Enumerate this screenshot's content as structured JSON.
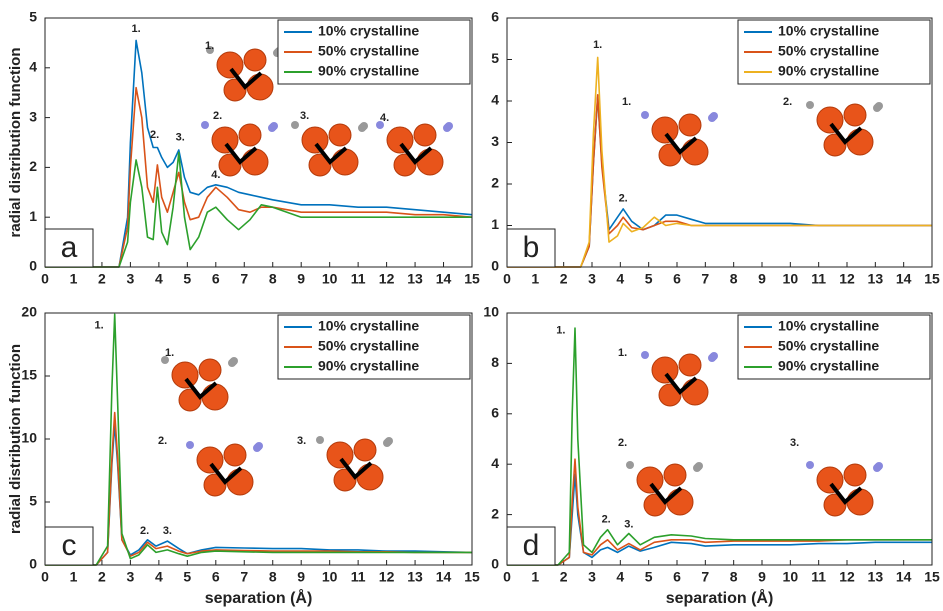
{
  "chart_data": [
    {
      "type": "line",
      "panel_label": "a",
      "y_label": "radial distribution function",
      "x": [
        0,
        2,
        2.6,
        2.9,
        3.0,
        3.2,
        3.4,
        3.6,
        3.8,
        3.95,
        4.1,
        4.3,
        4.5,
        4.7,
        4.9,
        5.1,
        5.4,
        5.7,
        6.0,
        6.4,
        6.8,
        7.2,
        7.6,
        8,
        9,
        10,
        11,
        12,
        13,
        14,
        15
      ],
      "series": [
        {
          "name": "10% crystalline",
          "color": "#0072bd",
          "values": [
            0,
            0,
            0,
            1,
            2.5,
            4.55,
            3.9,
            2.8,
            2.4,
            2.4,
            2.2,
            2.0,
            2.1,
            2.35,
            1.8,
            1.5,
            1.45,
            1.6,
            1.65,
            1.6,
            1.5,
            1.45,
            1.4,
            1.35,
            1.25,
            1.25,
            1.2,
            1.2,
            1.15,
            1.1,
            1.05
          ]
        },
        {
          "name": "50% crystalline",
          "color": "#d95319",
          "values": [
            0,
            0,
            0,
            0.8,
            2.0,
            3.6,
            3.0,
            1.6,
            1.3,
            2.05,
            1.4,
            1.1,
            1.5,
            1.9,
            1.3,
            0.95,
            1.0,
            1.4,
            1.6,
            1.4,
            1.15,
            1.1,
            1.2,
            1.2,
            1.1,
            1.1,
            1.1,
            1.1,
            1.05,
            1.05,
            1.0
          ]
        },
        {
          "name": "90% crystalline",
          "color": "#2ca02c",
          "values": [
            0,
            0,
            0,
            0.5,
            1.3,
            2.15,
            1.6,
            0.6,
            0.55,
            1.6,
            0.7,
            0.45,
            1.2,
            2.3,
            1.0,
            0.35,
            0.6,
            1.1,
            1.2,
            0.95,
            0.75,
            0.95,
            1.25,
            1.2,
            1.0,
            1.0,
            1.0,
            1.0,
            1.0,
            1.0,
            1.0
          ]
        }
      ],
      "xlim": [
        0,
        15
      ],
      "xticks": [
        0,
        1,
        2,
        3,
        4,
        5,
        6,
        7,
        8,
        9,
        10,
        11,
        12,
        13,
        14,
        15
      ],
      "ylim": [
        0,
        5
      ],
      "yticks": [
        0,
        1,
        2,
        3,
        4,
        5
      ],
      "legend": "upper right",
      "peak_labels": [
        "1.",
        "2.",
        "3.",
        "4."
      ],
      "inset_labels": [
        "1.",
        "2.",
        "3.",
        "4."
      ]
    },
    {
      "type": "line",
      "panel_label": "b",
      "x": [
        0,
        2,
        2.6,
        2.9,
        3.05,
        3.2,
        3.35,
        3.6,
        3.9,
        4.1,
        4.4,
        4.8,
        5.2,
        5.6,
        6,
        6.5,
        7,
        8,
        9,
        10,
        11,
        12,
        13,
        14,
        15
      ],
      "series": [
        {
          "name": "10% crystalline",
          "color": "#0072bd",
          "values": [
            0,
            0,
            0,
            0.5,
            2.5,
            4.1,
            2.5,
            0.9,
            1.2,
            1.4,
            1.1,
            0.9,
            1.0,
            1.25,
            1.25,
            1.15,
            1.05,
            1.05,
            1.05,
            1.05,
            1.0,
            1.0,
            1.0,
            1.0,
            1.0
          ]
        },
        {
          "name": "50% crystalline",
          "color": "#d95319",
          "values": [
            0,
            0,
            0,
            0.5,
            2.5,
            4.15,
            2.4,
            0.8,
            1.0,
            1.2,
            0.95,
            0.9,
            1.0,
            1.1,
            1.1,
            1.0,
            1.0,
            1.0,
            1.0,
            1.0,
            1.0,
            1.0,
            1.0,
            1.0,
            1.0
          ]
        },
        {
          "name": "90% crystalline",
          "color": "#edb120",
          "values": [
            0,
            0,
            0,
            0.6,
            3.2,
            5.05,
            2.8,
            0.6,
            0.75,
            1.05,
            0.85,
            0.95,
            1.2,
            1.0,
            1.05,
            1.0,
            1.0,
            1.0,
            1.0,
            1.0,
            1.0,
            1.0,
            1.0,
            1.0,
            1.0
          ]
        }
      ],
      "xlim": [
        0,
        15
      ],
      "xticks": [
        0,
        1,
        2,
        3,
        4,
        5,
        6,
        7,
        8,
        9,
        10,
        11,
        12,
        13,
        14,
        15
      ],
      "ylim": [
        0,
        6
      ],
      "yticks": [
        0,
        1,
        2,
        3,
        4,
        5,
        6
      ],
      "legend": "upper right",
      "peak_labels": [
        "1.",
        "2."
      ],
      "inset_labels": [
        "1.",
        "2."
      ]
    },
    {
      "type": "line",
      "panel_label": "c",
      "y_label": "radial distribution function",
      "x_label": "separation (Å)",
      "x": [
        0,
        1.8,
        2.2,
        2.35,
        2.45,
        2.55,
        2.7,
        3.0,
        3.3,
        3.6,
        3.9,
        4.3,
        4.7,
        5.0,
        5.5,
        6,
        7,
        8,
        9,
        10,
        11,
        12,
        13,
        14,
        15
      ],
      "series": [
        {
          "name": "10% crystalline",
          "color": "#0072bd",
          "values": [
            0,
            0,
            1,
            8,
            11.2,
            8,
            2,
            0.8,
            1.2,
            2.0,
            1.5,
            1.9,
            1.3,
            0.9,
            1.2,
            1.4,
            1.35,
            1.3,
            1.3,
            1.2,
            1.2,
            1.1,
            1.1,
            1.05,
            1.0
          ]
        },
        {
          "name": "50% crystalline",
          "color": "#d95319",
          "values": [
            0,
            0,
            1,
            8.5,
            12.1,
            8.5,
            2,
            0.7,
            1.0,
            1.8,
            1.3,
            1.5,
            1.1,
            0.9,
            1.1,
            1.2,
            1.15,
            1.1,
            1.1,
            1.1,
            1.05,
            1.05,
            1.0,
            1.0,
            1.0
          ]
        },
        {
          "name": "90% crystalline",
          "color": "#2ca02c",
          "values": [
            0,
            0,
            1.5,
            14,
            19.9,
            13,
            2.5,
            0.5,
            0.8,
            1.6,
            1.0,
            1.2,
            0.9,
            0.7,
            1.0,
            1.1,
            1.05,
            1.0,
            1.0,
            1.0,
            1.0,
            1.0,
            1.0,
            1.0,
            1.0
          ]
        }
      ],
      "xlim": [
        0,
        15
      ],
      "xticks": [
        0,
        1,
        2,
        3,
        4,
        5,
        6,
        7,
        8,
        9,
        10,
        11,
        12,
        13,
        14,
        15
      ],
      "ylim": [
        0,
        20
      ],
      "yticks": [
        0,
        5,
        10,
        15,
        20
      ],
      "legend": "upper right",
      "peak_labels": [
        "1.",
        "2.",
        "3."
      ],
      "inset_labels": [
        "1.",
        "2.",
        "3."
      ]
    },
    {
      "type": "line",
      "panel_label": "d",
      "x_label": "separation (Å)",
      "x": [
        0,
        1.8,
        2.2,
        2.3,
        2.4,
        2.5,
        2.7,
        3.0,
        3.3,
        3.55,
        3.9,
        4.3,
        4.7,
        5.2,
        5.8,
        6.5,
        7,
        8,
        9,
        10,
        11,
        12,
        13,
        14,
        15
      ],
      "series": [
        {
          "name": "10% crystalline",
          "color": "#0072bd",
          "values": [
            0,
            0,
            0.3,
            2.0,
            3.6,
            2.0,
            0.5,
            0.3,
            0.6,
            0.7,
            0.5,
            0.75,
            0.55,
            0.7,
            0.9,
            0.85,
            0.75,
            0.8,
            0.8,
            0.8,
            0.85,
            0.85,
            0.9,
            0.9,
            0.9
          ]
        },
        {
          "name": "50% crystalline",
          "color": "#d95319",
          "values": [
            0,
            0,
            0.3,
            2.5,
            4.2,
            2.3,
            0.5,
            0.4,
            0.8,
            1.0,
            0.6,
            0.85,
            0.6,
            0.9,
            1.0,
            1.0,
            0.9,
            0.95,
            0.95,
            0.95,
            0.95,
            1.0,
            1.0,
            1.0,
            1.0
          ]
        },
        {
          "name": "90% crystalline",
          "color": "#2ca02c",
          "values": [
            0,
            0,
            0.5,
            6,
            9.4,
            5,
            0.8,
            0.5,
            1.1,
            1.4,
            0.8,
            1.25,
            0.8,
            1.1,
            1.2,
            1.15,
            1.05,
            1.0,
            1.0,
            1.0,
            1.0,
            1.0,
            1.0,
            1.0,
            1.0
          ]
        }
      ],
      "xlim": [
        0,
        15
      ],
      "xticks": [
        0,
        1,
        2,
        3,
        4,
        5,
        6,
        7,
        8,
        9,
        10,
        11,
        12,
        13,
        14,
        15
      ],
      "ylim": [
        0,
        10
      ],
      "yticks": [
        0,
        2,
        4,
        6,
        8,
        10
      ],
      "legend": "upper right",
      "peak_labels": [
        "1.",
        "2.",
        "3."
      ],
      "inset_labels": [
        "1.",
        "2.",
        "3."
      ]
    }
  ]
}
